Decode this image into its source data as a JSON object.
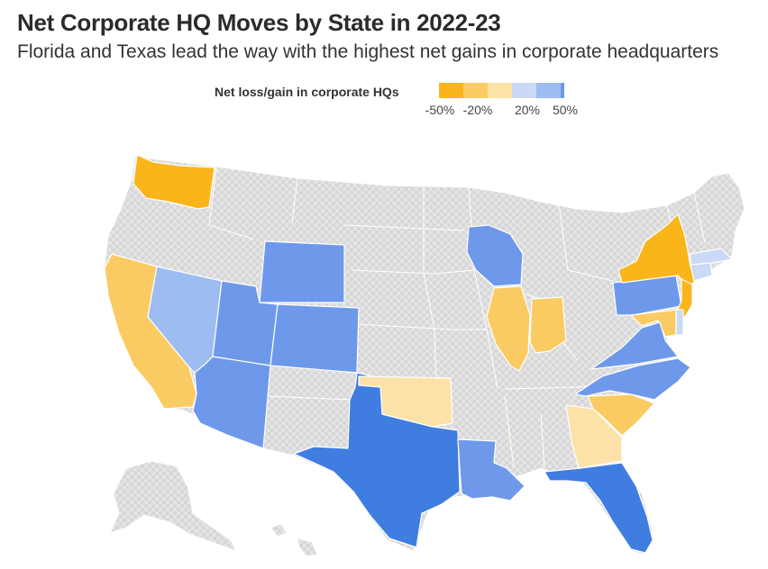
{
  "title": "Net Corporate HQ Moves by State in 2022-23",
  "subtitle": "Florida and Texas lead the way with the highest net gains in corporate headquarters",
  "legend": {
    "label": "Net loss/gain in corporate HQs",
    "bins": [
      {
        "range": "<= -50%",
        "color": "#F9B51A"
      },
      {
        "range": "-50% to -20%",
        "color": "#FACB62"
      },
      {
        "range": "-20% to 0%",
        "color": "#FCE2A8"
      },
      {
        "range": "0% to 20%",
        "color": "#C9D9F6"
      },
      {
        "range": "20% to 50%",
        "color": "#9DBCF2"
      },
      {
        "range": ">= 50%",
        "color": "#6E99EA"
      }
    ],
    "ticks": [
      "-50%",
      "-20%",
      "20%",
      "50%"
    ]
  },
  "colors": {
    "no_data": "#E3E3E3",
    "strong_loss": "#F9B51A",
    "loss": "#FACB62",
    "slight_loss": "#FCE2A8",
    "slight_gain": "#C9D9F6",
    "gain": "#9DBCF2",
    "high_gain": "#6E99EA",
    "top_gain": "#3F7DE0"
  },
  "states": [
    {
      "abbr": "WA",
      "category": "strong_loss"
    },
    {
      "abbr": "NY",
      "category": "strong_loss"
    },
    {
      "abbr": "NJ",
      "category": "strong_loss"
    },
    {
      "abbr": "CA",
      "category": "loss"
    },
    {
      "abbr": "IL",
      "category": "loss"
    },
    {
      "abbr": "IN",
      "category": "loss"
    },
    {
      "abbr": "SC",
      "category": "loss"
    },
    {
      "abbr": "MD",
      "category": "loss"
    },
    {
      "abbr": "OK",
      "category": "slight_loss"
    },
    {
      "abbr": "GA",
      "category": "slight_loss"
    },
    {
      "abbr": "MA",
      "category": "slight_gain"
    },
    {
      "abbr": "CT",
      "category": "slight_gain"
    },
    {
      "abbr": "DE",
      "category": "slight_gain"
    },
    {
      "abbr": "NV",
      "category": "gain"
    },
    {
      "abbr": "AZ",
      "category": "high_gain"
    },
    {
      "abbr": "UT",
      "category": "high_gain"
    },
    {
      "abbr": "WY",
      "category": "high_gain"
    },
    {
      "abbr": "CO",
      "category": "high_gain"
    },
    {
      "abbr": "WI",
      "category": "high_gain"
    },
    {
      "abbr": "PA",
      "category": "high_gain"
    },
    {
      "abbr": "VA",
      "category": "high_gain"
    },
    {
      "abbr": "NC",
      "category": "high_gain"
    },
    {
      "abbr": "LA",
      "category": "high_gain"
    },
    {
      "abbr": "TX",
      "category": "top_gain"
    },
    {
      "abbr": "FL",
      "category": "top_gain"
    }
  ]
}
